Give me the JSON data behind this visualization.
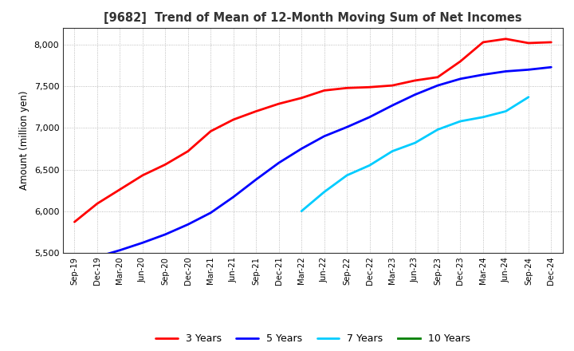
{
  "title": "[9682]  Trend of Mean of 12-Month Moving Sum of Net Incomes",
  "ylabel": "Amount (million yen)",
  "ylim": [
    5500,
    8200
  ],
  "yticks": [
    5500,
    6000,
    6500,
    7000,
    7500,
    8000
  ],
  "background_color": "#ffffff",
  "grid_color": "#aaaaaa",
  "x_labels": [
    "Sep-19",
    "Dec-19",
    "Mar-20",
    "Jun-20",
    "Sep-20",
    "Dec-20",
    "Mar-21",
    "Jun-21",
    "Sep-21",
    "Dec-21",
    "Mar-22",
    "Jun-22",
    "Sep-22",
    "Dec-22",
    "Mar-23",
    "Jun-23",
    "Sep-23",
    "Dec-23",
    "Mar-24",
    "Jun-24",
    "Sep-24",
    "Dec-24"
  ],
  "series": [
    {
      "label": "3 Years",
      "color": "#ff0000",
      "data_x": [
        0,
        1,
        2,
        3,
        4,
        5,
        6,
        7,
        8,
        9,
        10,
        11,
        12,
        13,
        14,
        15,
        16,
        17,
        18,
        19,
        20,
        21
      ],
      "data_y": [
        5870,
        6090,
        6260,
        6430,
        6560,
        6720,
        6960,
        7100,
        7200,
        7290,
        7360,
        7450,
        7480,
        7490,
        7510,
        7570,
        7610,
        7800,
        8030,
        8070,
        8020,
        8030
      ]
    },
    {
      "label": "5 Years",
      "color": "#0000ff",
      "data_x": [
        1,
        2,
        3,
        4,
        5,
        6,
        7,
        8,
        9,
        10,
        11,
        12,
        13,
        14,
        15,
        16,
        17,
        18,
        19,
        20,
        21
      ],
      "data_y": [
        5450,
        5530,
        5620,
        5720,
        5840,
        5980,
        6170,
        6380,
        6580,
        6750,
        6900,
        7010,
        7130,
        7270,
        7400,
        7510,
        7590,
        7640,
        7680,
        7700,
        7730
      ]
    },
    {
      "label": "7 Years",
      "color": "#00ccff",
      "data_x": [
        10,
        11,
        12,
        13,
        14,
        15,
        16,
        17,
        18,
        19,
        20
      ],
      "data_y": [
        6000,
        6230,
        6430,
        6550,
        6720,
        6820,
        6980,
        7080,
        7130,
        7200,
        7370
      ]
    },
    {
      "label": "10 Years",
      "color": "#008000",
      "data_x": [],
      "data_y": []
    }
  ],
  "legend_ncol": 4,
  "line_width": 2.0
}
